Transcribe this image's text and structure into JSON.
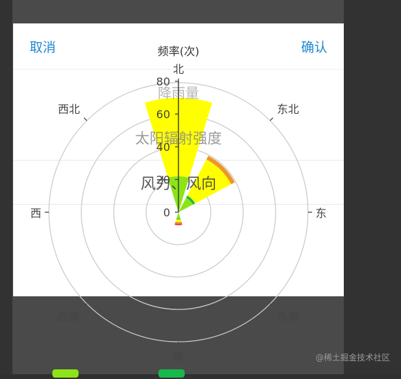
{
  "dialog": {
    "cancel_label": "取消",
    "confirm_label": "确认"
  },
  "picker": {
    "options": [
      "降雨量",
      "太阳辐射强度",
      "风力、风向"
    ]
  },
  "chart_data": {
    "type": "polar-bar",
    "radial_axis": {
      "label": "频率(次)",
      "range": [
        0,
        80
      ],
      "ticks": [
        0,
        20,
        40,
        60,
        80
      ]
    },
    "directions": [
      "北",
      "东北",
      "东",
      "东南",
      "南",
      "西南",
      "西",
      "西北"
    ],
    "series": [
      {
        "color": "#8ce417",
        "values": [
          22,
          10,
          0,
          0,
          4,
          0,
          0,
          0
        ]
      },
      {
        "color": "#18b84c",
        "values": [
          0,
          1.5,
          0,
          0,
          0.5,
          0,
          0,
          0
        ]
      },
      {
        "color": "#ffff00",
        "values": [
          48,
          25,
          0,
          0,
          1.5,
          0,
          0,
          0
        ]
      },
      {
        "color": "#f0942a",
        "values": [
          0,
          0,
          0,
          0,
          0,
          0,
          0,
          0
        ]
      }
    ],
    "totals_overlay_orange": [
      69,
      39,
      0,
      0,
      7,
      0,
      0,
      0
    ],
    "legend": [
      {
        "color": "#8ce417"
      },
      {
        "color": "#18b84c"
      }
    ]
  },
  "watermark": "@稀土掘金技术社区"
}
